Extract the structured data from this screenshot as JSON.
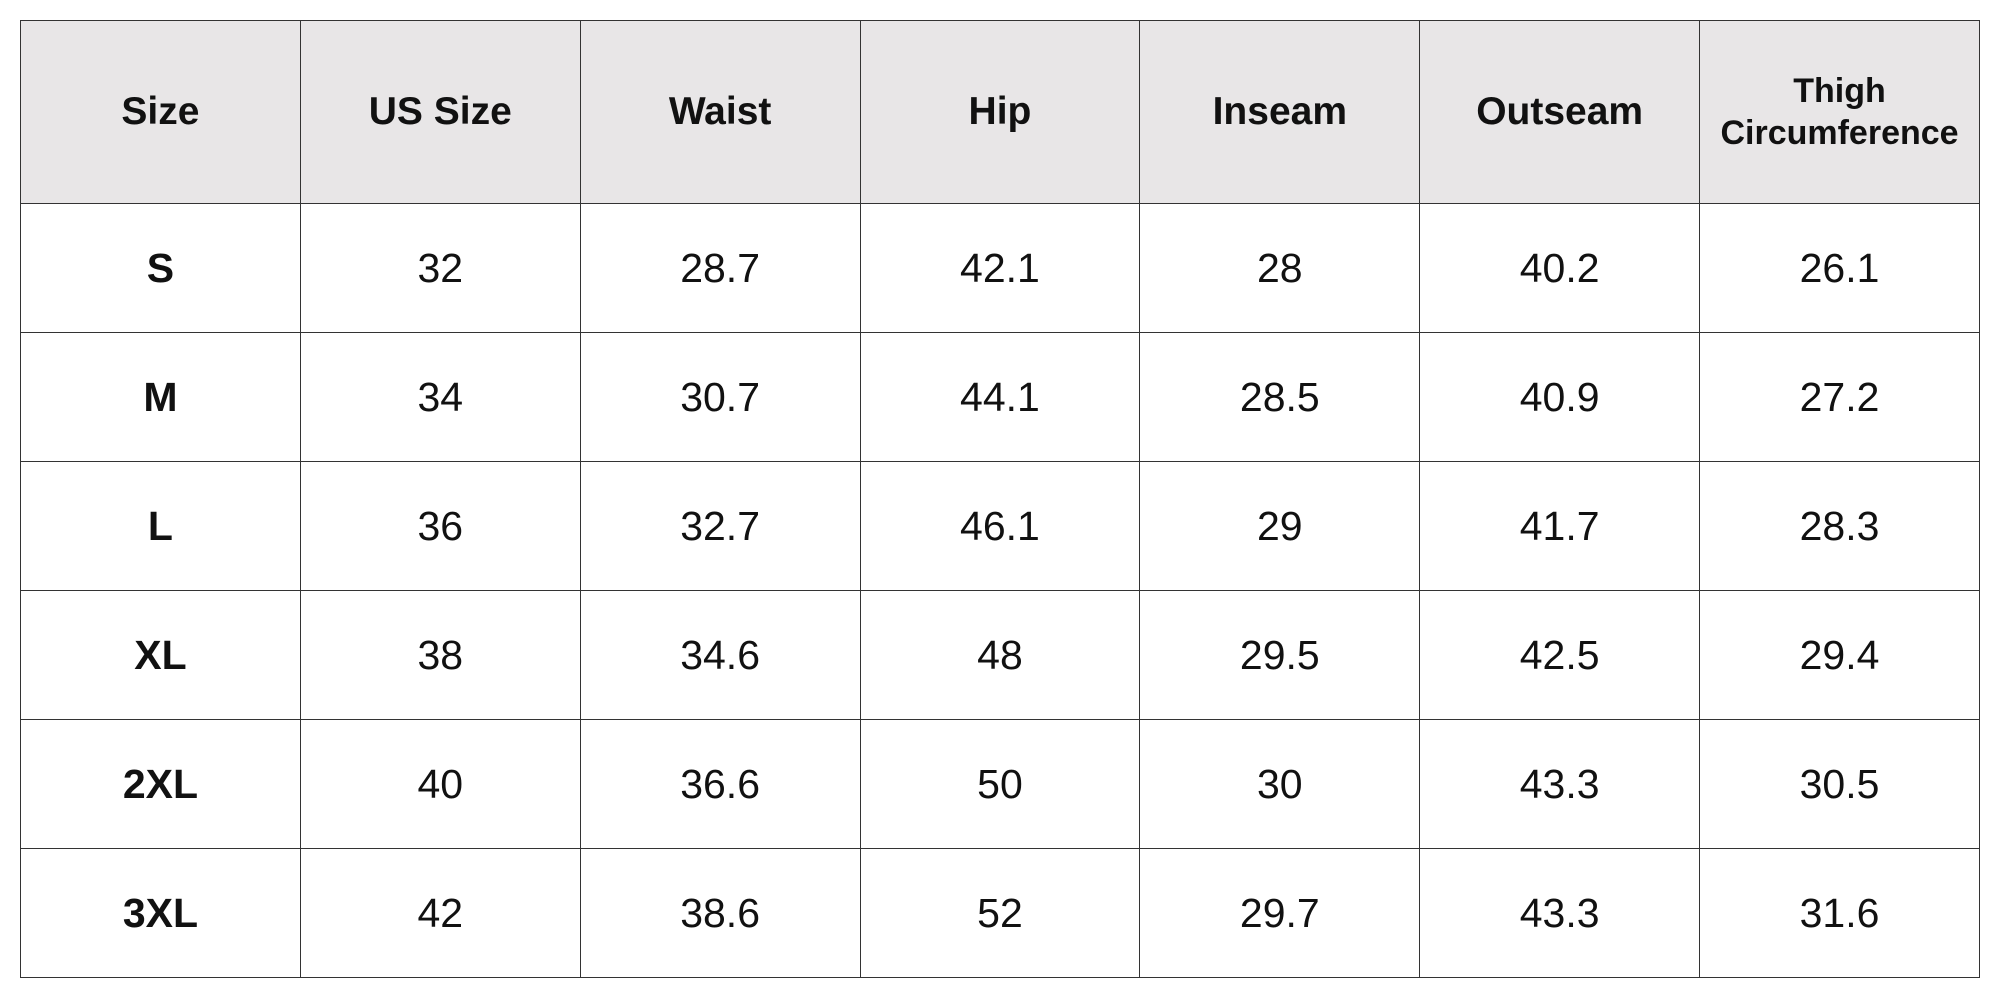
{
  "table": {
    "header": [
      "Size",
      "US Size",
      "Waist",
      "Hip",
      "Inseam",
      "Outseam",
      "Thigh Circumference"
    ],
    "rows": [
      [
        "S",
        32,
        28.7,
        42.1,
        28,
        40.2,
        26.1
      ],
      [
        "M",
        34,
        30.7,
        44.1,
        28.5,
        40.9,
        27.2
      ],
      [
        "L",
        36,
        32.7,
        46.1,
        29,
        41.7,
        28.3
      ],
      [
        "XL",
        38,
        34.6,
        48,
        29.5,
        42.5,
        29.4
      ],
      [
        "2XL",
        40,
        36.6,
        50,
        30,
        43.3,
        30.5
      ],
      [
        "3XL",
        42,
        38.6,
        52,
        29.7,
        43.3,
        31.6
      ]
    ]
  }
}
